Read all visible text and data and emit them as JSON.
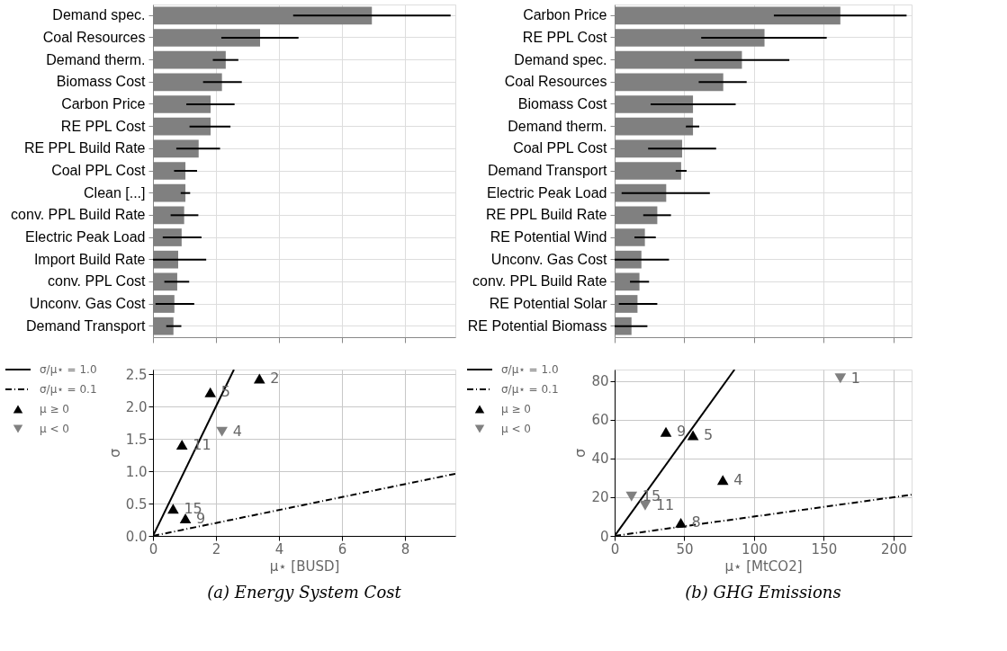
{
  "chart_data": [
    {
      "type": "bar",
      "orientation": "horizontal",
      "color": "#808080",
      "grid": true,
      "tick_labels": "y",
      "xlim": [
        0,
        9.6
      ],
      "xticks": [
        0,
        2,
        4,
        6,
        8
      ],
      "categories": [
        "Demand spec.",
        "Coal Resources",
        "Demand therm.",
        "Biomass Cost",
        "Carbon Price",
        "RE PPL Cost",
        "RE PPL Build Rate",
        "Coal PPL Cost",
        "Clean [...]",
        "conv. PPL Build Rate",
        "Electric Peak Load",
        "Import Build Rate",
        "conv. PPL Cost",
        "Unconv. Gas Cost",
        "Demand Transport"
      ],
      "values": [
        6.95,
        3.4,
        2.31,
        2.19,
        1.83,
        1.83,
        1.45,
        1.03,
        1.03,
        0.99,
        0.91,
        0.8,
        0.77,
        0.68,
        0.65
      ],
      "errors": [
        [
          4.45,
          9.45
        ],
        [
          2.17,
          4.62
        ],
        [
          1.9,
          2.71
        ],
        [
          1.59,
          2.82
        ],
        [
          1.06,
          2.59
        ],
        [
          1.16,
          2.46
        ],
        [
          0.74,
          2.13
        ],
        [
          0.67,
          1.4
        ],
        [
          0.88,
          1.18
        ],
        [
          0.56,
          1.44
        ],
        [
          0.31,
          1.54
        ],
        [
          0.0,
          1.69
        ],
        [
          0.36,
          1.15
        ],
        [
          0.08,
          1.31
        ],
        [
          0.42,
          0.9
        ]
      ]
    },
    {
      "type": "bar",
      "orientation": "horizontal",
      "color": "#808080",
      "grid": true,
      "tick_labels": "y",
      "xlim": [
        0,
        213
      ],
      "xticks": [
        0,
        50,
        100,
        150,
        200
      ],
      "categories": [
        "Carbon Price",
        "RE PPL Cost",
        "Demand spec.",
        "Coal Resources",
        "Biomass Cost",
        "Demand therm.",
        "Coal PPL Cost",
        "Demand Transport",
        "Electric Peak Load",
        "RE PPL Build Rate",
        "RE Potential Wind",
        "Unconv. Gas Cost",
        "conv. PPL Build Rate",
        "RE Potential Solar",
        "RE Potential Biomass"
      ],
      "values": [
        161.9,
        107.5,
        91.3,
        77.9,
        56.2,
        56.2,
        48.4,
        47.7,
        37.0,
        30.6,
        21.7,
        19.2,
        17.8,
        16.4,
        12.1
      ],
      "errors": [
        [
          114.2,
          209.4
        ],
        [
          62.1,
          152.1
        ],
        [
          57.3,
          125.3
        ],
        [
          60.3,
          94.7
        ],
        [
          25.8,
          86.8
        ],
        [
          51.1,
          60.7
        ],
        [
          24.0,
          72.8
        ],
        [
          43.8,
          51.6
        ],
        [
          5.0,
          68.3
        ],
        [
          20.5,
          40.4
        ],
        [
          14.2,
          29.5
        ],
        [
          0.0,
          39.0
        ],
        [
          11.0,
          24.7
        ],
        [
          3.0,
          30.6
        ],
        [
          0.0,
          23.5
        ]
      ]
    },
    {
      "type": "scatter",
      "xlabel": "μ⋆ [BUSD]",
      "ylabel": "σ",
      "grid": true,
      "legend": "left",
      "xlim": [
        0,
        9.6
      ],
      "xticks": [
        0,
        2,
        4,
        6,
        8
      ],
      "ylim": [
        0,
        2.57
      ],
      "yticks": [
        {
          "value": 0,
          "label": "0.0"
        },
        0.5,
        {
          "value": 1,
          "label": "1.0"
        },
        1.5,
        {
          "value": 2,
          "label": "2.0"
        },
        2.5
      ],
      "series": [
        {
          "name": "σ/μ⋆ = 1.0",
          "type": "line",
          "line_style": "solid",
          "color": "#000000",
          "x": [
            0,
            2.57
          ],
          "values": [
            0,
            2.57
          ]
        },
        {
          "name": "σ/μ⋆ = 0.1",
          "type": "line",
          "line_style": "dashdot",
          "color": "#000000",
          "x": [
            0,
            9.6
          ],
          "values": [
            0,
            0.96
          ]
        },
        {
          "name": "μ ≥ 0",
          "type": "scatter",
          "marker": "triangle",
          "color": "#000000",
          "x": [
            3.38,
            1.82,
            0.92,
            0.64,
            1.03
          ],
          "values": [
            2.43,
            2.22,
            1.41,
            0.42,
            0.27
          ]
        },
        {
          "name": "μ < 0",
          "type": "scatter",
          "marker": "triangle-down",
          "color": "#808080",
          "x": [
            2.19
          ],
          "values": [
            1.61
          ]
        }
      ],
      "annotations": [
        {
          "text": "2",
          "x": 3.38,
          "y": 2.43
        },
        {
          "text": "5",
          "x": 1.82,
          "y": 2.22
        },
        {
          "text": "4",
          "x": 2.19,
          "y": 1.61
        },
        {
          "text": "11",
          "x": 0.92,
          "y": 1.41
        },
        {
          "text": "15",
          "x": 0.64,
          "y": 0.42
        },
        {
          "text": "9",
          "x": 1.03,
          "y": 0.27
        },
        "(a) Energy System Cost"
      ]
    },
    {
      "type": "scatter",
      "xlabel": "μ⋆ [MtCO2]",
      "ylabel": "σ",
      "grid": true,
      "legend": "left",
      "xlim": [
        0,
        213
      ],
      "xticks": [
        0,
        50,
        100,
        150,
        200
      ],
      "ylim": [
        0,
        86
      ],
      "yticks": [
        0,
        20,
        40,
        60,
        80
      ],
      "series": [
        {
          "name": "σ/μ⋆ = 1.0",
          "type": "line",
          "line_style": "solid",
          "color": "#000000",
          "x": [
            0,
            86
          ],
          "values": [
            0,
            86
          ]
        },
        {
          "name": "σ/μ⋆ = 0.1",
          "type": "line",
          "line_style": "dashdot",
          "color": "#000000",
          "x": [
            0,
            213
          ],
          "values": [
            0,
            21.3
          ]
        },
        {
          "name": "μ ≥ 0",
          "type": "scatter",
          "marker": "triangle",
          "color": "#000000",
          "x": [
            36.8,
            56.2,
            77.6,
            47.5
          ],
          "values": [
            53.8,
            52.1,
            28.9,
            6.8
          ]
        },
        {
          "name": "μ < 0",
          "type": "scatter",
          "marker": "triangle-down",
          "color": "#808080",
          "x": [
            161.9,
            12.1,
            21.9
          ],
          "values": [
            81.5,
            20.3,
            15.7
          ]
        }
      ],
      "annotations": [
        {
          "text": "1",
          "x": 161.9,
          "y": 81.5
        },
        {
          "text": "9",
          "x": 36.8,
          "y": 53.8
        },
        {
          "text": "5",
          "x": 56.2,
          "y": 52.1
        },
        {
          "text": "4",
          "x": 77.6,
          "y": 28.9
        },
        {
          "text": "15",
          "x": 12.1,
          "y": 20.3
        },
        {
          "text": "11",
          "x": 21.9,
          "y": 15.7
        },
        {
          "text": "8",
          "x": 47.5,
          "y": 6.8
        },
        "(b) GHG Emissions"
      ]
    }
  ]
}
